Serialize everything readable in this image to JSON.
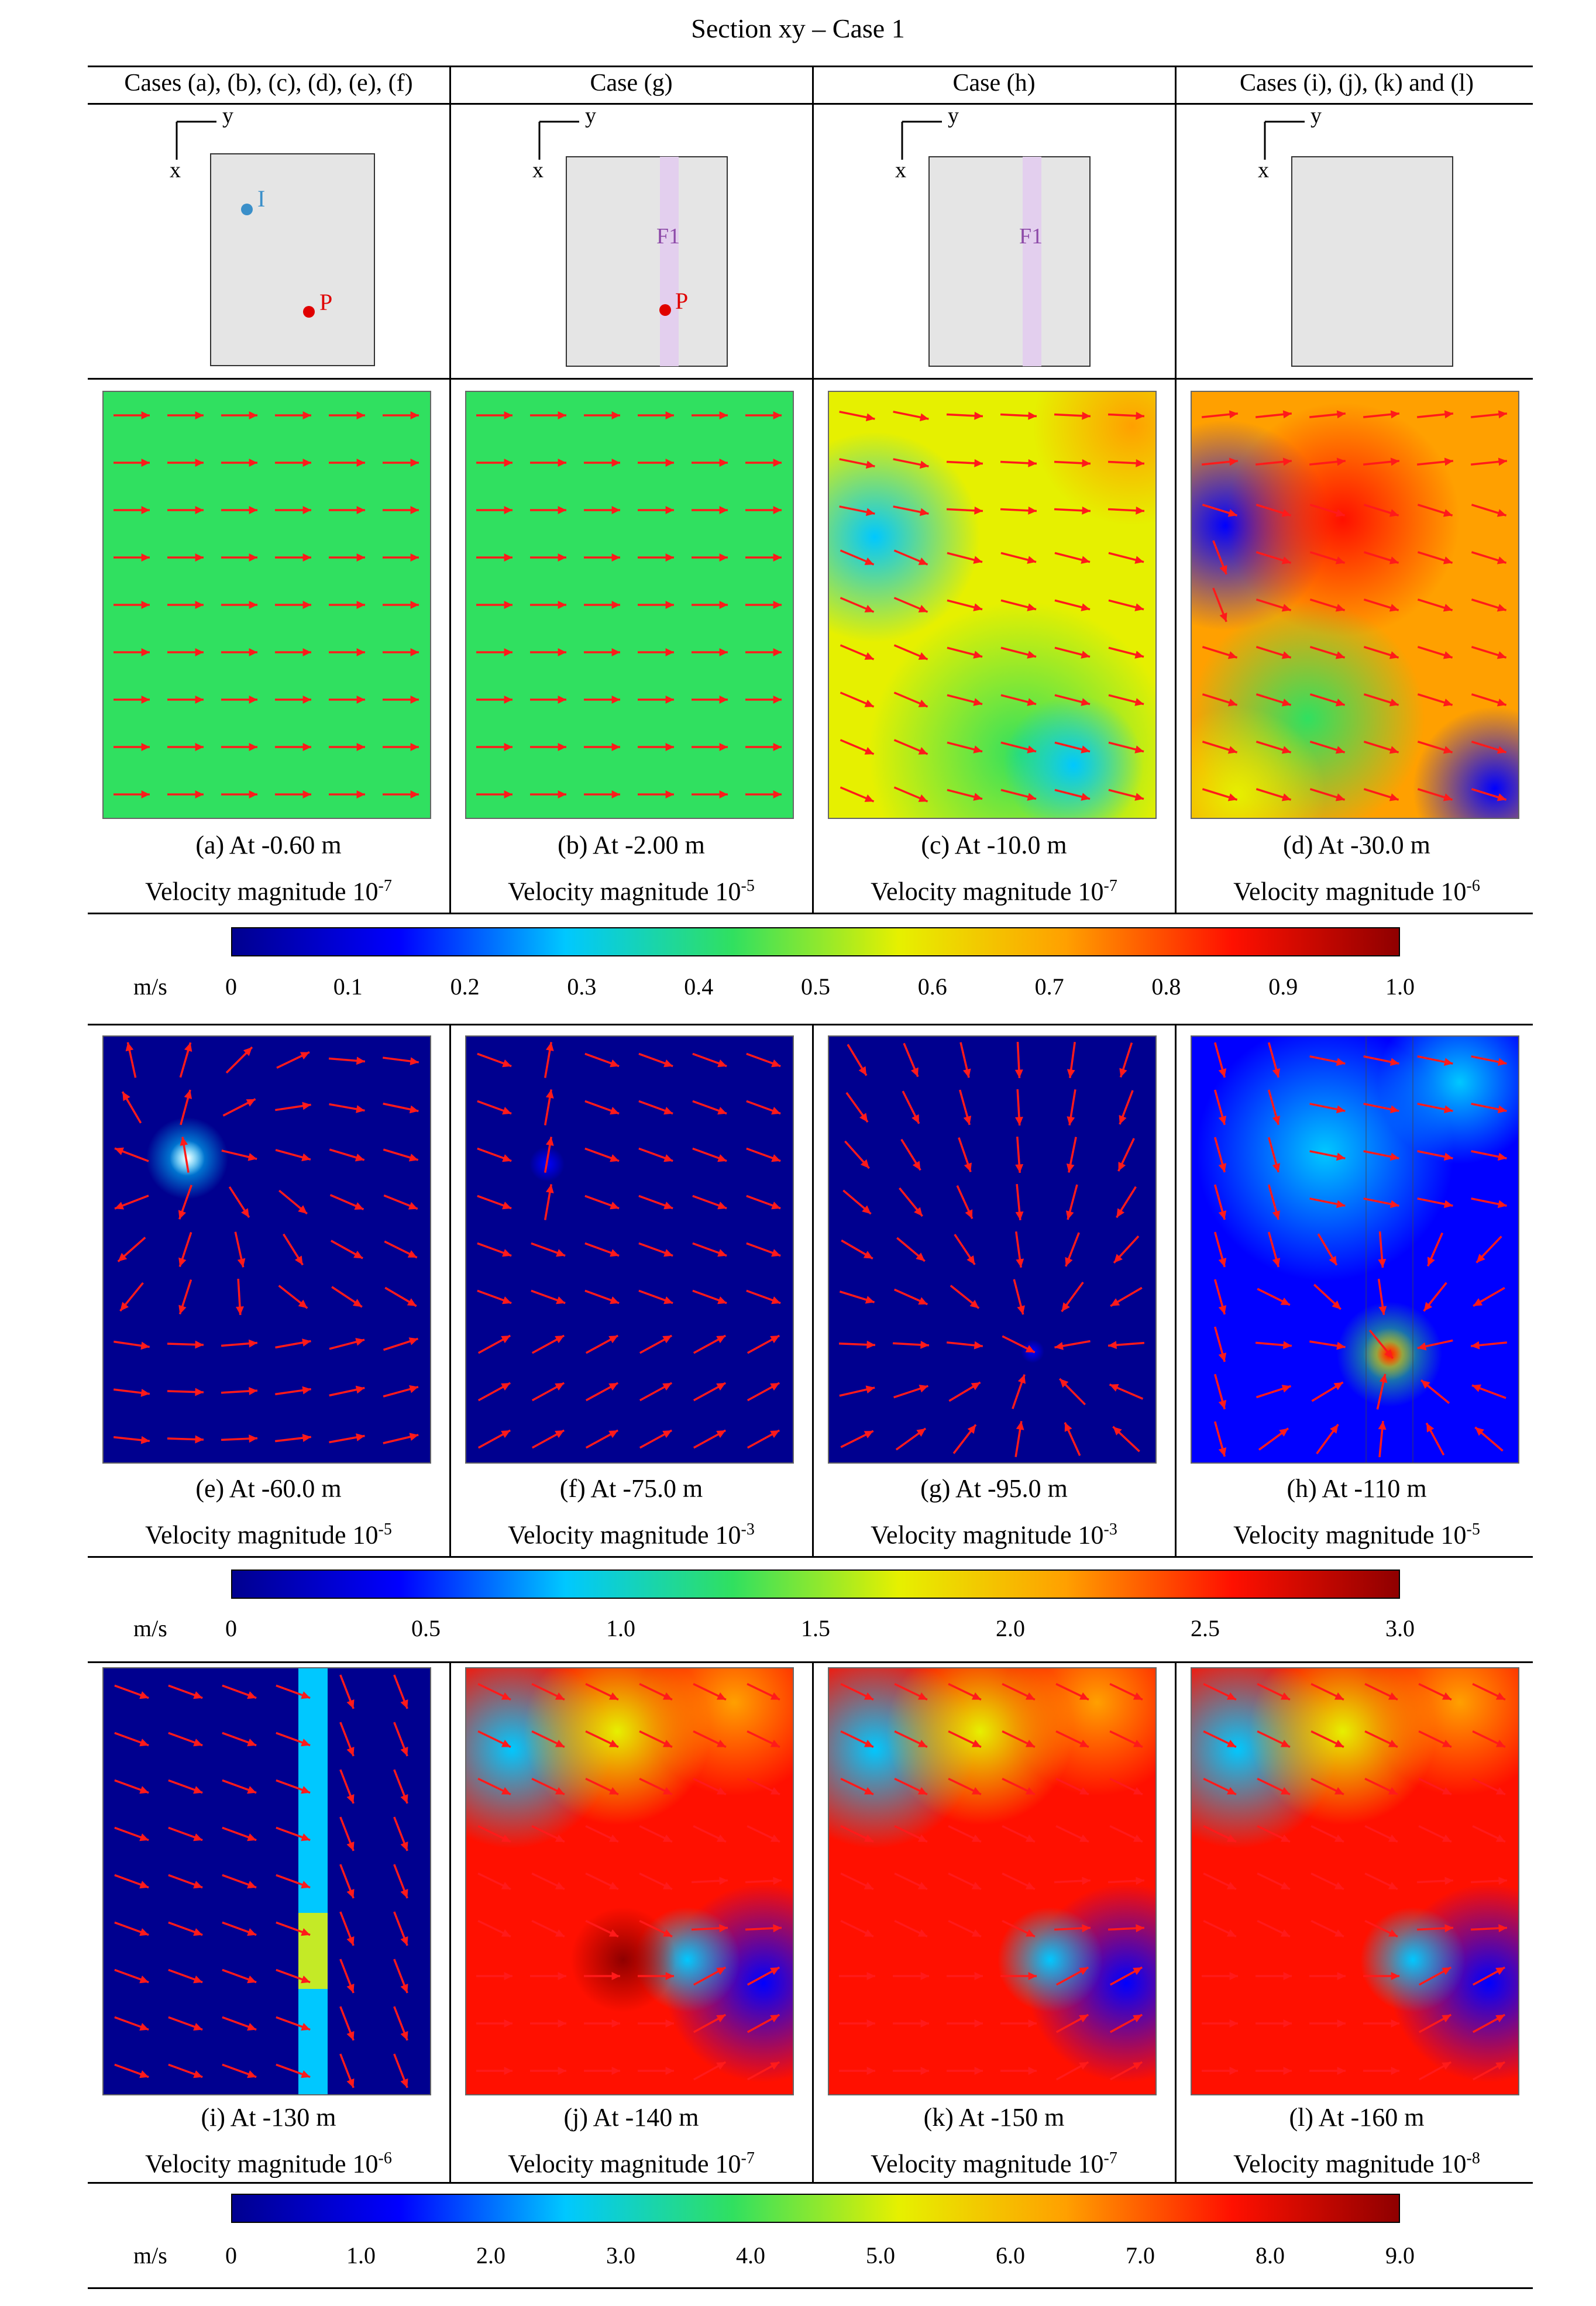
{
  "figure": {
    "title": "Section xy – Case 1"
  },
  "column_headers": [
    "Cases (a), (b), (c), (d), (e), (f)",
    "Case (g)",
    "Case (h)",
    "Cases (i), (j), (k) and (l)"
  ],
  "schematics": {
    "axis_x": "x",
    "axis_y": "y",
    "injector_label": "I",
    "producer_label": "P",
    "fracture_label": "F1",
    "colors": {
      "domain": "#e5e5e5",
      "injector": "#3a8fc9",
      "producer": "#e00000",
      "fracture": "#e3cfee",
      "fracture_text": "#8d4aa8"
    }
  },
  "panels": [
    {
      "label": "(a) At -0.60 m",
      "magnitude_text": "Velocity magnitude 10",
      "exponent": "-7"
    },
    {
      "label": "(b) At -2.00 m",
      "magnitude_text": "Velocity magnitude 10",
      "exponent": "-5"
    },
    {
      "label": "(c) At -10.0 m",
      "magnitude_text": "Velocity magnitude 10",
      "exponent": "-7"
    },
    {
      "label": "(d) At -30.0 m",
      "magnitude_text": "Velocity magnitude 10",
      "exponent": "-6"
    },
    {
      "label": "(e) At -60.0 m",
      "magnitude_text": "Velocity magnitude 10",
      "exponent": "-5"
    },
    {
      "label": "(f) At -75.0 m",
      "magnitude_text": "Velocity magnitude 10",
      "exponent": "-3"
    },
    {
      "label": "(g) At -95.0 m",
      "magnitude_text": "Velocity magnitude 10",
      "exponent": "-3"
    },
    {
      "label": "(h) At -110 m",
      "magnitude_text": "Velocity magnitude 10",
      "exponent": "-5"
    },
    {
      "label": "(i) At -130 m",
      "magnitude_text": "Velocity magnitude 10",
      "exponent": "-6"
    },
    {
      "label": "(j) At -140 m",
      "magnitude_text": "Velocity magnitude 10",
      "exponent": "-7"
    },
    {
      "label": "(k) At -150 m",
      "magnitude_text": "Velocity magnitude 10",
      "exponent": "-7"
    },
    {
      "label": "(l) At -160 m",
      "magnitude_text": "Velocity magnitude 10",
      "exponent": "-8"
    }
  ],
  "colorbars": [
    {
      "unit": "m/s",
      "ticks": [
        "0",
        "0.1",
        "0.2",
        "0.3",
        "0.4",
        "0.5",
        "0.6",
        "0.7",
        "0.8",
        "0.9",
        "1.0"
      ],
      "min": 0,
      "max": 1.0
    },
    {
      "unit": "m/s",
      "ticks": [
        "0",
        "0.5",
        "1.0",
        "1.5",
        "2.0",
        "2.5",
        "3.0"
      ],
      "min": 0,
      "max": 3.0
    },
    {
      "unit": "m/s",
      "ticks": [
        "0",
        "1.0",
        "2.0",
        "3.0",
        "4.0",
        "5.0",
        "6.0",
        "7.0",
        "8.0",
        "9.0"
      ],
      "min": 0,
      "max": 9.0
    }
  ],
  "colormap": [
    "#00008f",
    "#0000ff",
    "#00c8ff",
    "#30e060",
    "#e6f000",
    "#ffa000",
    "#ff1000",
    "#8f0000"
  ],
  "arrow_color": "#ff1a1a"
}
